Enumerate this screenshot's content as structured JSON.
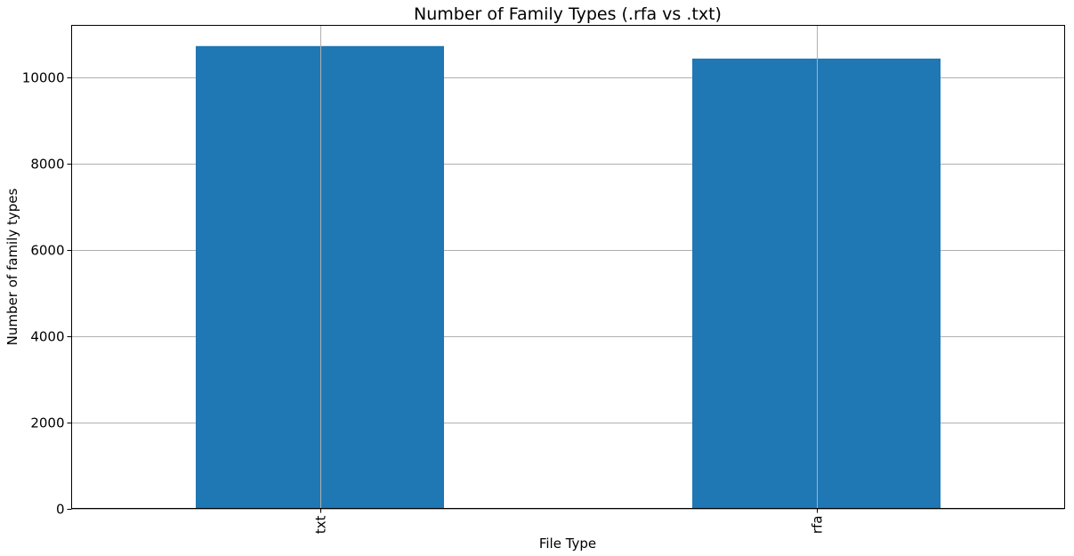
{
  "chart_data": {
    "type": "bar",
    "title": "Number of Family Types (.rfa vs .txt)",
    "xlabel": "File Type",
    "ylabel": "Number of family types",
    "categories": [
      "txt",
      "rfa"
    ],
    "values": [
      10720,
      10430
    ],
    "ylim": [
      0,
      11200
    ],
    "yticks": [
      0,
      2000,
      4000,
      6000,
      8000,
      10000
    ],
    "ytick_labels": [
      "0",
      "2000",
      "4000",
      "6000",
      "8000",
      "10000"
    ],
    "grid": true,
    "bar_color": "#1f77b4",
    "xtick_rotation": "vertical"
  }
}
